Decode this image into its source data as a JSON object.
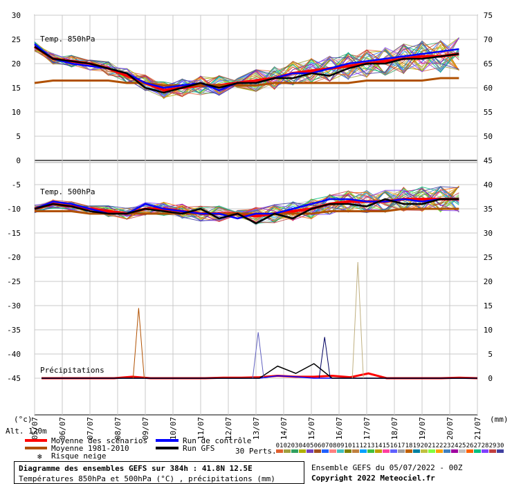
{
  "chart_data": {
    "type": "line",
    "axes": {
      "left_ticks": [
        30,
        25,
        20,
        15,
        10,
        5,
        0,
        -5,
        -10,
        -15,
        -20,
        -25,
        -30,
        -35,
        -40,
        -45
      ],
      "right_ticks": [
        75,
        70,
        65,
        60,
        55,
        50,
        45,
        40,
        35,
        30,
        25,
        20,
        15,
        10,
        5,
        0
      ],
      "left_unit": "(°c)",
      "right_unit": "(mm)",
      "altitude": "Alt. 120m",
      "x_ticks": [
        "05/07",
        "06/07",
        "07/07",
        "08/07",
        "09/07",
        "10/07",
        "11/07",
        "12/07",
        "13/07",
        "14/07",
        "15/07",
        "16/07",
        "17/07",
        "18/07",
        "19/07",
        "20/07",
        "21/07"
      ],
      "grid": true
    },
    "panels": {
      "t850_label": "Temp. 850hPa",
      "t500_label": "Temp. 500hPa",
      "precip_label": "Précipitations"
    },
    "series": [
      {
        "name": "Moyenne des scénarios",
        "color": "#ff0000",
        "role": "mean",
        "t850": [
          23.5,
          21,
          20.5,
          20,
          19,
          17.5,
          16,
          14.5,
          15,
          15.5,
          15.5,
          16,
          16.5,
          17,
          18,
          18.5,
          19,
          19.5,
          20,
          20.5,
          21,
          21.5,
          21.5,
          22
        ],
        "t500": [
          -10,
          -9,
          -9.5,
          -10,
          -10.5,
          -11,
          -10,
          -10,
          -10.5,
          -11,
          -11,
          -11,
          -11.5,
          -11,
          -10.5,
          -10,
          -9,
          -8.5,
          -8.5,
          -8.5,
          -8,
          -8,
          -8,
          -8
        ],
        "precip": [
          0,
          0,
          0,
          0,
          0,
          0.3,
          0,
          0,
          0,
          0,
          0.1,
          0.1,
          0.2,
          0.5,
          0.3,
          0.3,
          0.5,
          0.2,
          1,
          0,
          0,
          0,
          0,
          0.1,
          0
        ]
      },
      {
        "name": "Moyenne 1981-2010",
        "color": "#b05000",
        "role": "climate",
        "t850": [
          16,
          16.5,
          16.5,
          16.5,
          16.5,
          16,
          16,
          15.5,
          15.5,
          15.5,
          15.5,
          15.5,
          15.5,
          16,
          16,
          16,
          16,
          16,
          16.5,
          16.5,
          16.5,
          16.5,
          17,
          17
        ],
        "t500": [
          -10.5,
          -10.5,
          -10.5,
          -11,
          -11,
          -11,
          -11,
          -11,
          -11,
          -11,
          -11,
          -11,
          -11,
          -11,
          -11,
          -11,
          -10.5,
          -10.5,
          -10.5,
          -10.5,
          -10,
          -10,
          -10,
          -10
        ],
        "precip": []
      },
      {
        "name": "Run de contrôle",
        "color": "#0000ff",
        "role": "control",
        "t850": [
          24,
          21,
          20,
          19.5,
          19,
          18,
          16,
          15,
          15.5,
          16,
          14.5,
          16,
          16,
          17,
          18,
          18,
          19,
          20,
          20.5,
          21,
          21.5,
          22,
          22.5,
          23
        ],
        "t500": [
          -10,
          -8.5,
          -9,
          -10,
          -11,
          -11,
          -9,
          -10,
          -10.5,
          -11,
          -11,
          -12,
          -11,
          -11,
          -10,
          -9,
          -8,
          -8,
          -8.5,
          -8.5,
          -8,
          -8.5,
          -8,
          -8
        ],
        "precip": [
          0,
          0,
          0,
          0,
          0,
          0,
          0,
          0,
          0,
          0,
          0,
          0,
          0,
          0.5,
          0.3,
          0,
          0,
          0,
          0,
          0,
          0,
          0,
          0,
          0,
          0
        ]
      },
      {
        "name": "Run GFS",
        "color": "#000000",
        "role": "gfs",
        "t850": [
          23.5,
          21,
          20.5,
          20,
          19,
          18,
          15,
          14,
          15,
          16,
          15,
          16,
          16,
          17,
          17,
          18,
          17.5,
          19,
          20,
          20,
          21,
          21,
          21.5,
          22
        ],
        "t500": [
          -10,
          -9,
          -9.5,
          -10.5,
          -11,
          -11,
          -10,
          -10.5,
          -11,
          -10,
          -12,
          -11,
          -13,
          -11,
          -12,
          -10,
          -9,
          -9,
          -9.5,
          -8,
          -9,
          -9,
          -8,
          -8
        ],
        "precip": [
          0,
          0,
          0,
          0,
          0,
          0,
          0,
          0,
          0,
          0,
          0,
          0,
          0,
          2.5,
          1,
          3,
          0,
          0,
          0,
          0,
          0,
          0,
          0,
          0,
          0
        ]
      }
    ],
    "legend": {
      "mean": "Moyenne des scénarios",
      "climate": "Moyenne 1981-2010",
      "snow": "Risque neige",
      "control": "Run de contrôle",
      "gfs": "Run GFS",
      "perts_label": "30 Perts.",
      "pert_numbers": [
        "01",
        "02",
        "03",
        "04",
        "05",
        "06",
        "07",
        "08",
        "09",
        "10",
        "11",
        "12",
        "13",
        "14",
        "15",
        "16",
        "17",
        "18",
        "19",
        "20",
        "21",
        "22",
        "23",
        "24",
        "25",
        "26",
        "27",
        "28",
        "29",
        "30"
      ],
      "pert_colors": [
        "#e06030",
        "#a0a040",
        "#30a060",
        "#b0b000",
        "#7040c0",
        "#a05020",
        "#2060ff",
        "#ff8080",
        "#40c0c0",
        "#808000",
        "#c08040",
        "#00a0ff",
        "#40c040",
        "#c0a000",
        "#ff40a0",
        "#6060ff",
        "#a0a0a0",
        "#c06000",
        "#0080a0",
        "#c0c040",
        "#80ff40",
        "#ffa000",
        "#4080c0",
        "#a000a0",
        "#c0c0c0",
        "#ff6000",
        "#00c080",
        "#8040ff",
        "#c04040",
        "#4040a0"
      ]
    },
    "footer": {
      "title": "Diagramme des ensembles GEFS sur 384h : 41.8N 12.5E",
      "subtitle": "Températures 850hPa et 500hPa (°C) , précipitations (mm)",
      "run": "Ensemble GEFS du 05/07/2022 - 00Z",
      "copyright": "Copyright 2022 Meteociel.fr"
    }
  }
}
